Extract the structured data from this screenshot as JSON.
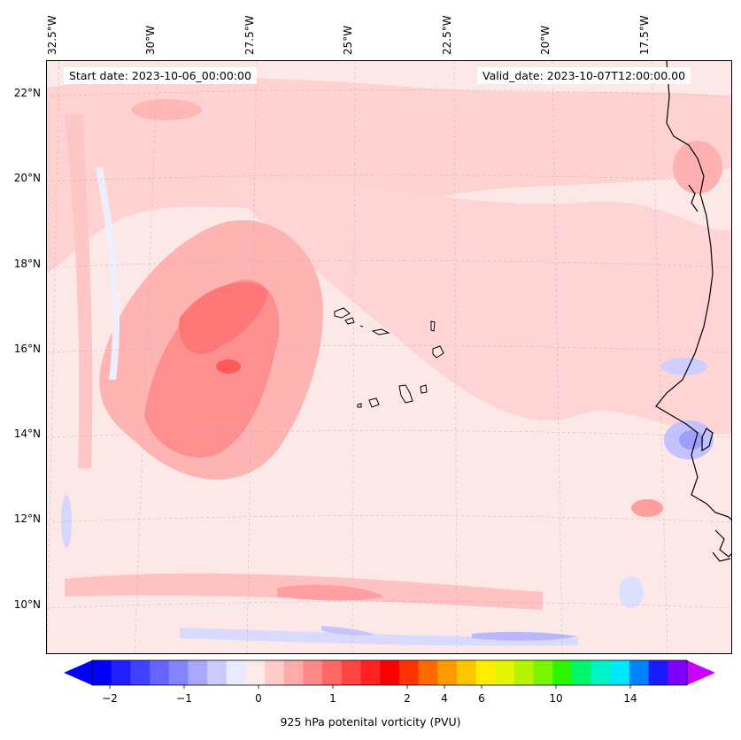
{
  "header": {
    "start_label": "Start date: 2023-10-06_00:00:00",
    "valid_label": "Valid_date: 2023-10-07T12:00:00.00"
  },
  "map": {
    "lon_labels": [
      "32.5°W",
      "30°W",
      "27.5°W",
      "25°W",
      "22.5°W",
      "20°W",
      "17.5°W"
    ],
    "lat_labels": [
      "22°N",
      "20°N",
      "18°N",
      "16°N",
      "14°N",
      "12°N",
      "10°N"
    ],
    "field": "925 hPa potenital vorticity (PVU)",
    "gridlines": true,
    "coastline_color": "#000000"
  },
  "colorbar": {
    "label": "925 hPa potenital vorticity (PVU)",
    "ticks": [
      "−2",
      "−1",
      "0",
      "1",
      "2",
      "4",
      "6",
      "10",
      "14"
    ],
    "extend": "both",
    "colors": [
      "#0000ff",
      "#2020ff",
      "#4040ff",
      "#6464ff",
      "#8484ff",
      "#a8a8ff",
      "#cacaff",
      "#eaeaff",
      "#ffeaea",
      "#ffcaca",
      "#ffaaaa",
      "#ff8888",
      "#ff6666",
      "#ff4444",
      "#ff2222",
      "#ff0000",
      "#ff3300",
      "#ff6a00",
      "#ff9a00",
      "#ffc400",
      "#ffee00",
      "#e6f500",
      "#b5f500",
      "#7cf500",
      "#2cf500",
      "#00f56a",
      "#00f5c4",
      "#00e6ff",
      "#0082ff",
      "#1a1aff",
      "#8000ff"
    ],
    "under_color": "#0000ff",
    "over_color": "#c800ff"
  }
}
